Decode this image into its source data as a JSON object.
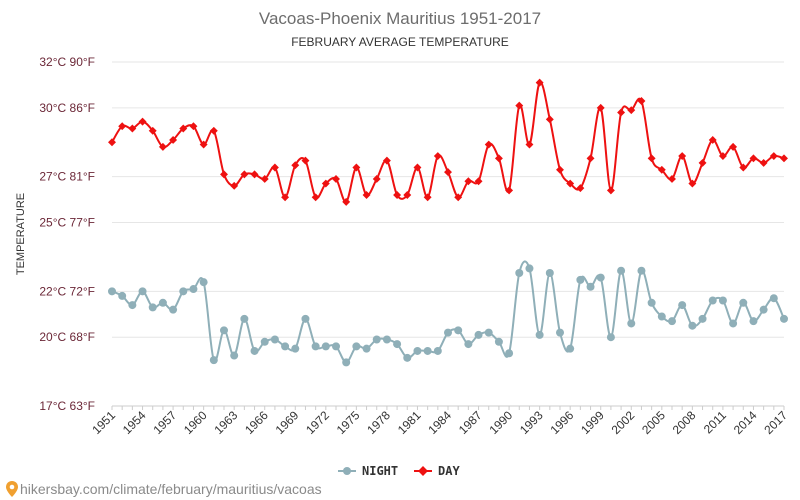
{
  "chart_data": {
    "type": "line",
    "title": "Vacoas-Phoenix Mauritius 1951-2017",
    "subtitle": "FEBRUARY AVERAGE TEMPERATURE",
    "ylabel": "TEMPERATURE",
    "xlabel": "",
    "y_ticks": [
      {
        "value": 17,
        "label": "17°C 63°F"
      },
      {
        "value": 20,
        "label": "20°C 68°F"
      },
      {
        "value": 22,
        "label": "22°C 72°F"
      },
      {
        "value": 25,
        "label": "25°C 77°F"
      },
      {
        "value": 27,
        "label": "27°C 81°F"
      },
      {
        "value": 30,
        "label": "30°C 86°F"
      },
      {
        "value": 32,
        "label": "32°C 90°F"
      }
    ],
    "ylim": [
      17,
      32
    ],
    "x_tick_labels": [
      "1951",
      "1954",
      "1957",
      "1960",
      "1963",
      "1966",
      "1969",
      "1972",
      "1975",
      "1978",
      "1981",
      "1984",
      "1987",
      "1990",
      "1993",
      "1996",
      "1999",
      "2002",
      "2005",
      "2008",
      "2011",
      "2014",
      "2017"
    ],
    "x": [
      1951,
      1952,
      1953,
      1954,
      1955,
      1956,
      1957,
      1958,
      1959,
      1960,
      1961,
      1962,
      1963,
      1964,
      1965,
      1966,
      1967,
      1968,
      1969,
      1970,
      1971,
      1972,
      1973,
      1974,
      1975,
      1976,
      1977,
      1978,
      1979,
      1980,
      1981,
      1982,
      1983,
      1984,
      1985,
      1986,
      1987,
      1988,
      1989,
      1990,
      1991,
      1992,
      1993,
      1994,
      1995,
      1996,
      1997,
      1998,
      1999,
      2000,
      2001,
      2002,
      2003,
      2004,
      2005,
      2006,
      2007,
      2008,
      2009,
      2010,
      2011,
      2012,
      2013,
      2014,
      2015,
      2016,
      2017
    ],
    "series": [
      {
        "name": "NIGHT",
        "color": "#8fafb8",
        "marker": "circle",
        "values": [
          22.0,
          21.8,
          21.4,
          22.0,
          21.3,
          21.5,
          21.2,
          22.0,
          22.1,
          22.4,
          19.0,
          20.3,
          19.2,
          20.8,
          19.4,
          19.8,
          19.9,
          19.6,
          19.5,
          20.8,
          19.6,
          19.6,
          19.6,
          18.9,
          19.6,
          19.5,
          19.9,
          19.9,
          19.7,
          19.1,
          19.4,
          19.4,
          19.4,
          20.2,
          20.3,
          19.7,
          20.1,
          20.2,
          19.8,
          19.3,
          22.8,
          23.0,
          20.1,
          22.8,
          20.2,
          19.5,
          22.5,
          22.2,
          22.6,
          20.0,
          22.9,
          20.6,
          22.9,
          21.5,
          20.9,
          20.7,
          21.4,
          20.5,
          20.8,
          21.6,
          21.6,
          20.6,
          21.5,
          20.7,
          21.2,
          21.7,
          20.8
        ]
      },
      {
        "name": "DAY",
        "color": "#ee1111",
        "marker": "diamond",
        "values": [
          28.5,
          29.2,
          29.1,
          29.4,
          29.0,
          28.3,
          28.6,
          29.1,
          29.2,
          28.4,
          29.0,
          27.1,
          26.6,
          27.1,
          27.1,
          26.9,
          27.4,
          26.1,
          27.5,
          27.7,
          26.1,
          26.7,
          26.9,
          25.9,
          27.4,
          26.2,
          26.9,
          27.7,
          26.2,
          26.2,
          27.4,
          26.1,
          27.9,
          27.2,
          26.1,
          26.8,
          26.8,
          28.4,
          27.8,
          26.4,
          30.1,
          28.4,
          31.1,
          29.5,
          27.3,
          26.7,
          26.5,
          27.8,
          30.0,
          26.4,
          29.8,
          29.9,
          30.3,
          27.8,
          27.3,
          26.9,
          27.9,
          26.7,
          27.6,
          28.6,
          27.9,
          28.3,
          27.4,
          27.8,
          27.6,
          27.9,
          27.8
        ]
      }
    ],
    "grid": true,
    "legend_position": "bottom-center"
  },
  "footer": {
    "text": "hikersbay.com/climate/february/mauritius/vacoas",
    "color": "#8a8a8a"
  }
}
